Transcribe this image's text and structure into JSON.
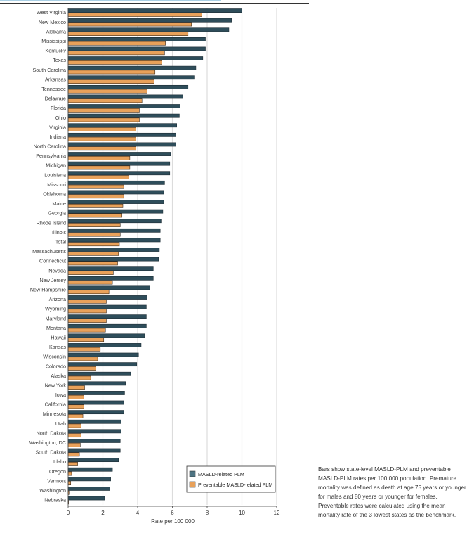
{
  "chart_data": {
    "type": "bar",
    "orientation": "horizontal",
    "title": "",
    "xlabel": "Rate per 100 000",
    "ylabel": "",
    "xlim": [
      0,
      12
    ],
    "xticks": [
      0,
      2,
      4,
      6,
      8,
      10,
      12
    ],
    "grid": true,
    "legend_position": "bottom-right",
    "categories": [
      "West Virginia",
      "New Mexico",
      "Alabama",
      "Mississippi",
      "Kentucky",
      "Texas",
      "South Carolina",
      "Arkansas",
      "Tennessee",
      "Delaware",
      "Florida",
      "Ohio",
      "Virginia",
      "Indiana",
      "North Carolina",
      "Pennsylvania",
      "Michigan",
      "Louisiana",
      "Missouri",
      "Oklahoma",
      "Maine",
      "Georgia",
      "Rhode Island",
      "Illinois",
      "Total",
      "Massachusetts",
      "Connecticut",
      "Nevada",
      "New Jersey",
      "New Hampshire",
      "Arizona",
      "Wyoming",
      "Maryland",
      "Montana",
      "Hawaii",
      "Kansas",
      "Wisconsin",
      "Colorado",
      "Alaska",
      "New York",
      "Iowa",
      "California",
      "Minnesota",
      "Utah",
      "North Dakota",
      "Washington, DC",
      "South Dakota",
      "Idaho",
      "Oregon",
      "Vermont",
      "Washington",
      "Nebraska"
    ],
    "series": [
      {
        "name": "MASLD-related PLM",
        "color": "#2e4d5a",
        "values": [
          10.0,
          9.4,
          9.25,
          7.9,
          7.9,
          7.75,
          7.35,
          7.25,
          6.9,
          6.6,
          6.45,
          6.4,
          6.25,
          6.2,
          6.2,
          5.9,
          5.85,
          5.85,
          5.55,
          5.5,
          5.5,
          5.45,
          5.35,
          5.3,
          5.3,
          5.25,
          5.2,
          4.9,
          4.9,
          4.7,
          4.55,
          4.5,
          4.5,
          4.5,
          4.4,
          4.2,
          4.05,
          3.95,
          3.6,
          3.3,
          3.25,
          3.2,
          3.2,
          3.05,
          3.05,
          3.0,
          3.0,
          2.9,
          2.55,
          2.45,
          2.4,
          2.1
        ]
      },
      {
        "name": "Preventable MASLD-related PLM",
        "color": "#e8a15a",
        "values": [
          7.7,
          7.1,
          6.9,
          5.6,
          5.55,
          5.4,
          5.0,
          4.95,
          4.55,
          4.25,
          4.1,
          4.1,
          3.9,
          3.9,
          3.9,
          3.55,
          3.55,
          3.5,
          3.2,
          3.2,
          3.15,
          3.1,
          3.0,
          3.0,
          2.95,
          2.9,
          2.85,
          2.6,
          2.55,
          2.35,
          2.2,
          2.2,
          2.2,
          2.15,
          2.05,
          1.85,
          1.7,
          1.6,
          1.3,
          0.95,
          0.9,
          0.9,
          0.85,
          0.75,
          0.75,
          0.7,
          0.65,
          0.55,
          0.2,
          0.15,
          0.05,
          0.0
        ]
      }
    ]
  },
  "note": "Bars show state-level MASLD-PLM and preventable MASLD-PLM rates per 100 000 population. Premature mortality was defined as death at age 75 years or younger for males and 80 years or younger for females. Preventable rates were calculated using the mean mortality rate of the 3 lowest states as the benchmark."
}
